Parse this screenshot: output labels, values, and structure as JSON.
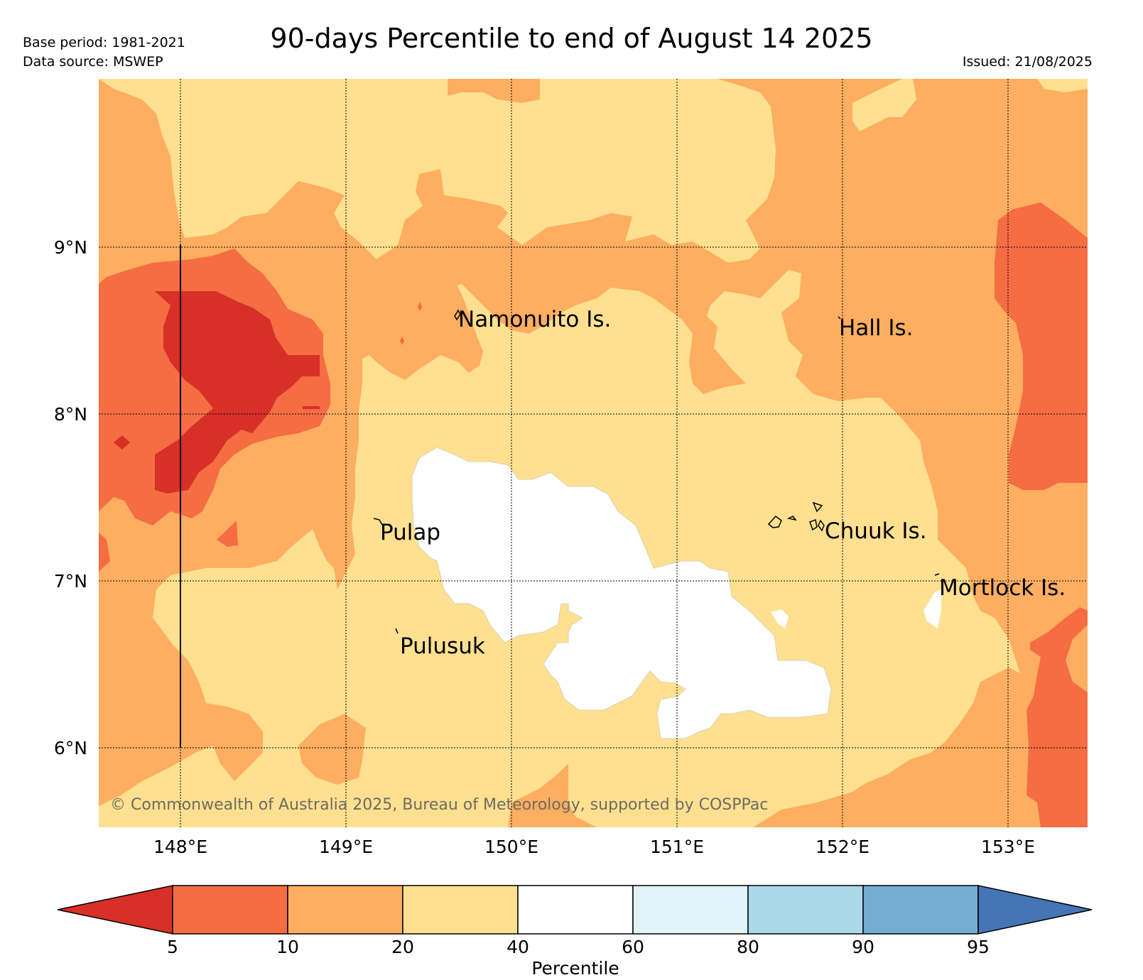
{
  "header": {
    "title": "90-days Percentile to end of August 14 2025",
    "base_period": "Base period: 1981-2021",
    "data_source": "Data source: MSWEP",
    "issued": "Issued: 21/08/2025"
  },
  "map": {
    "lat_labels": [
      "9°N",
      "8°N",
      "7°N",
      "6°N"
    ],
    "lon_labels": [
      "148°E",
      "149°E",
      "150°E",
      "151°E",
      "152°E",
      "153°E"
    ],
    "places": {
      "namonuito": "Namonuito Is.",
      "hall": "Hall Is.",
      "pulap": "Pulap",
      "chuuk": "Chuuk Is.",
      "mortlock": "Mortlock Is.",
      "pulusuk": "Pulusuk"
    },
    "credit": "© Commonwealth of Australia 2025, Bureau of Meteorology, supported by COSPPac"
  },
  "colorbar": {
    "title": "Percentile",
    "ticks": [
      "5",
      "10",
      "20",
      "40",
      "60",
      "80",
      "90",
      "95"
    ],
    "colors": {
      "below_5": "#d73027",
      "5_10": "#f46d43",
      "10_20": "#fdae61",
      "20_40": "#fee090",
      "40_60": "#ffffff",
      "60_80": "#e0f3f8",
      "80_90": "#abd9e9",
      "90_95": "#74add1",
      "above_95": "#4575b4"
    }
  }
}
